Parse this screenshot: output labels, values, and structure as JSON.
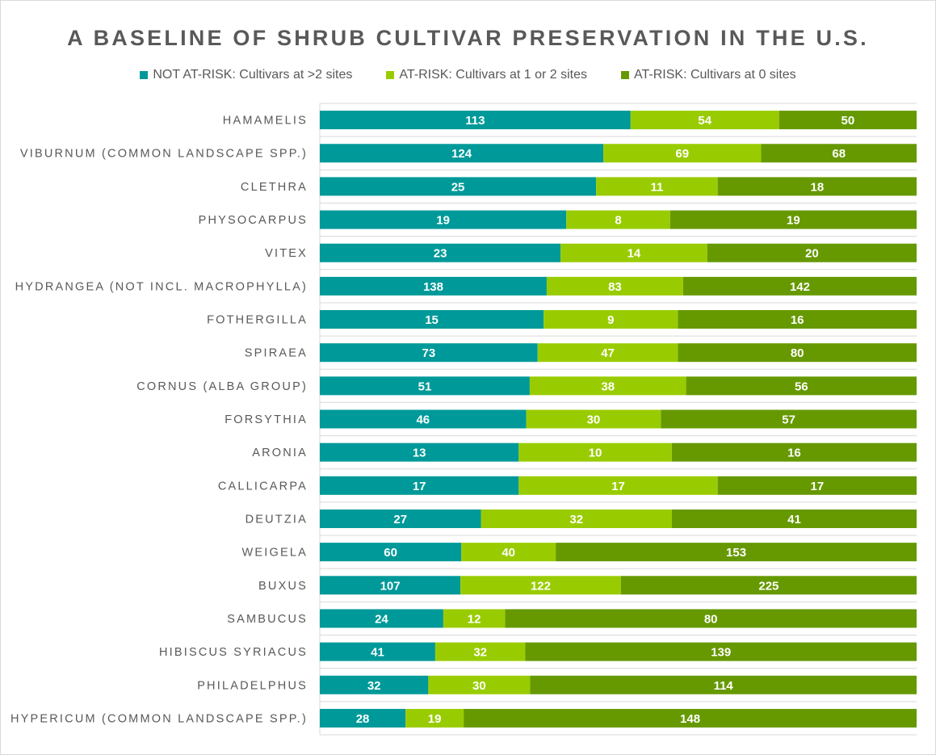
{
  "chart_data": {
    "type": "bar",
    "orientation": "horizontal",
    "stacked": "100%",
    "title": "A BASELINE OF SHRUB CULTIVAR PRESERVATION IN THE U.S.",
    "categories": [
      "HAMAMELIS",
      "VIBURNUM (COMMON LANDSCAPE SPP.)",
      "CLETHRA",
      "PHYSOCARPUS",
      "VITEX",
      "HYDRANGEA (NOT INCL. MACROPHYLLA)",
      "FOTHERGILLA",
      "SPIRAEA",
      "CORNUS (ALBA GROUP)",
      "FORSYTHIA",
      "ARONIA",
      "CALLICARPA",
      "DEUTZIA",
      "WEIGELA",
      "BUXUS",
      "SAMBUCUS",
      "HIBISCUS SYRIACUS",
      "PHILADELPHUS",
      "HYPERICUM (COMMON LANDSCAPE SPP.)"
    ],
    "series": [
      {
        "name": "NOT AT-RISK: Cultivars at >2 sites",
        "color": "#009999",
        "values": [
          113,
          124,
          25,
          19,
          23,
          138,
          15,
          73,
          51,
          46,
          13,
          17,
          27,
          60,
          107,
          24,
          41,
          32,
          28
        ]
      },
      {
        "name": "AT-RISK: Cultivars at 1 or 2 sites",
        "color": "#99cc00",
        "values": [
          54,
          69,
          11,
          8,
          14,
          83,
          9,
          47,
          38,
          30,
          10,
          17,
          32,
          40,
          122,
          12,
          32,
          30,
          19
        ]
      },
      {
        "name": "AT-RISK: Cultivars at 0 sites",
        "color": "#669900",
        "values": [
          50,
          68,
          18,
          19,
          20,
          142,
          16,
          80,
          56,
          57,
          16,
          17,
          41,
          153,
          225,
          80,
          139,
          114,
          148
        ]
      }
    ],
    "legend_position": "top",
    "grid": true,
    "data_labels": true
  }
}
